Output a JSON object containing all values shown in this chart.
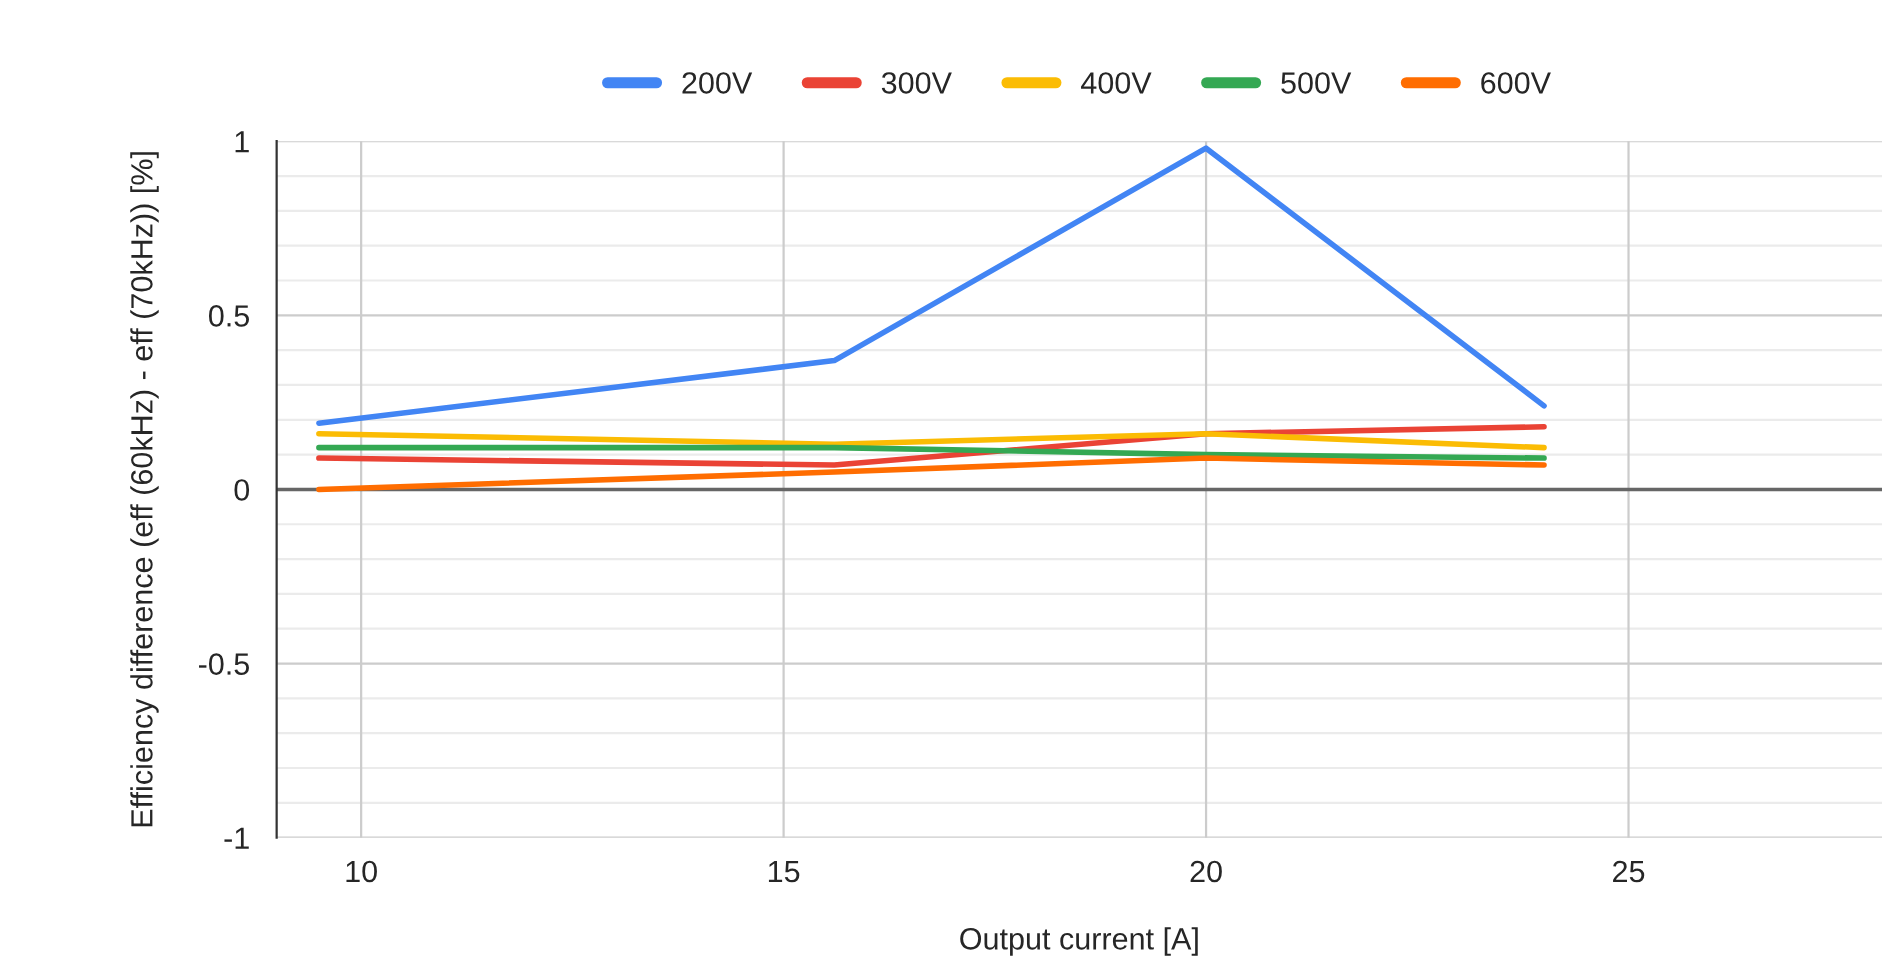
{
  "chart_data": {
    "type": "line",
    "xlabel": "Output current [A]",
    "ylabel": "Efficiency difference (eff (60kHz) - eff (70kHz)) [%]",
    "x": [
      9.5,
      15.6,
      20,
      24
    ],
    "series": [
      {
        "name": "200V",
        "color": "#4285f4",
        "values": [
          0.19,
          0.37,
          0.98,
          0.24
        ]
      },
      {
        "name": "300V",
        "color": "#ea4335",
        "values": [
          0.09,
          0.07,
          0.16,
          0.18
        ]
      },
      {
        "name": "400V",
        "color": "#fbbc04",
        "values": [
          0.16,
          0.13,
          0.16,
          0.12
        ]
      },
      {
        "name": "500V",
        "color": "#34a853",
        "values": [
          0.12,
          0.12,
          0.1,
          0.09
        ]
      },
      {
        "name": "600V",
        "color": "#ff6d01",
        "values": [
          0.0,
          0.05,
          0.09,
          0.07
        ]
      }
    ],
    "xlim": [
      9,
      28
    ],
    "xticks": [
      10,
      15,
      20,
      25
    ],
    "ylim": [
      -1,
      1
    ],
    "yticks": [
      -1,
      -0.5,
      0,
      0.5,
      1
    ],
    "ref_lines": [
      {
        "axis": "y",
        "value": 0,
        "color": "#666666"
      }
    ],
    "grid": true,
    "legend": "top",
    "marker": "none",
    "line_style": "solid"
  }
}
